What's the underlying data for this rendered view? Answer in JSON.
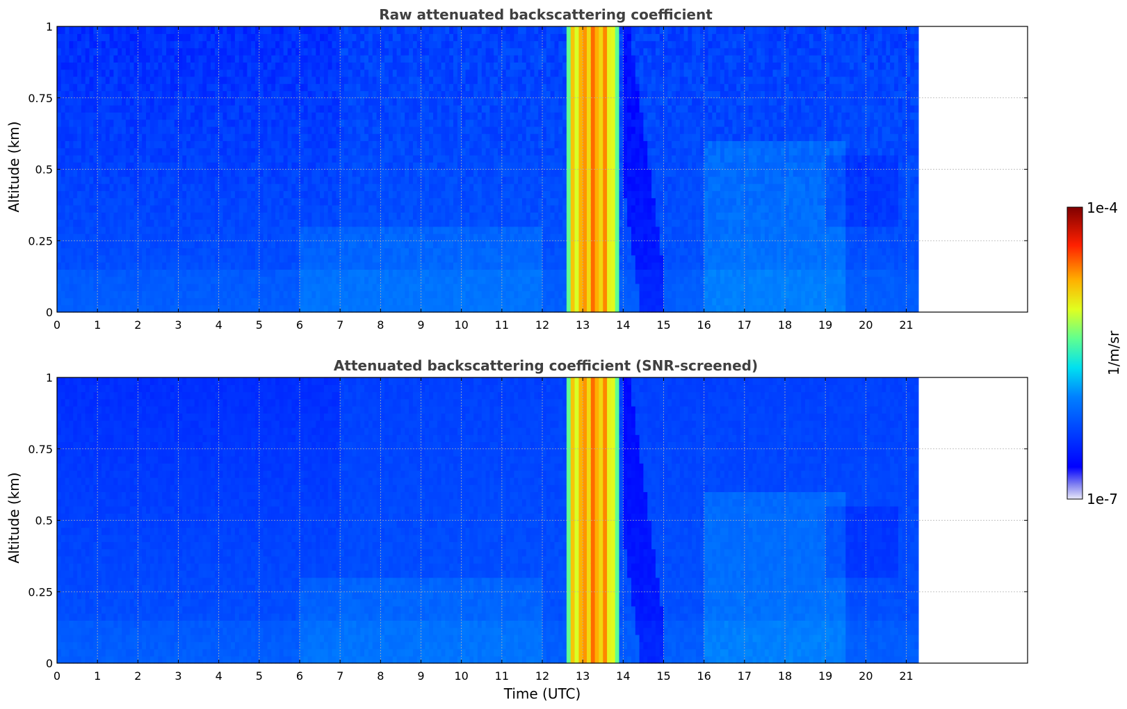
{
  "chart_data": [
    {
      "type": "heatmap",
      "title": "Raw attenuated backscattering coefficient",
      "xlabel": "",
      "ylabel": "Altitude (km)",
      "xlim": [
        0,
        24
      ],
      "ylim": [
        0,
        1
      ],
      "data_x_range": [
        0,
        21.3
      ],
      "xticks": [
        "0",
        "1",
        "2",
        "3",
        "4",
        "5",
        "6",
        "7",
        "8",
        "9",
        "10",
        "11",
        "12",
        "13",
        "14",
        "15",
        "16",
        "17",
        "18",
        "19",
        "20",
        "21"
      ],
      "yticks": [
        "0",
        "0.25",
        "0.5",
        "0.75",
        "1"
      ],
      "grid": true,
      "features": [
        {
          "name": "cloud band",
          "x_start": 12.6,
          "x_end": 13.9,
          "level": "high"
        },
        {
          "name": "clear layer",
          "x_start": 14.0,
          "x_end": 15.0,
          "level": "low"
        }
      ]
    },
    {
      "type": "heatmap",
      "title": "Attenuated backscattering coefficient (SNR-screened)",
      "xlabel": "Time (UTC)",
      "ylabel": "Altitude (km)",
      "xlim": [
        0,
        24
      ],
      "ylim": [
        0,
        1
      ],
      "data_x_range": [
        0,
        21.3
      ],
      "xticks": [
        "0",
        "1",
        "2",
        "3",
        "4",
        "5",
        "6",
        "7",
        "8",
        "9",
        "10",
        "11",
        "12",
        "13",
        "14",
        "15",
        "16",
        "17",
        "18",
        "19",
        "20",
        "21"
      ],
      "yticks": [
        "0",
        "0.25",
        "0.5",
        "0.75",
        "1"
      ],
      "grid": true,
      "features": [
        {
          "name": "cloud band",
          "x_start": 12.6,
          "x_end": 13.9,
          "level": "high"
        },
        {
          "name": "clear layer",
          "x_start": 14.0,
          "x_end": 15.0,
          "level": "low"
        }
      ]
    }
  ],
  "colorbar": {
    "label": "1/m/sr",
    "max_label": "1e-4",
    "min_label": "1e-7",
    "min": 1e-07,
    "max": 0.0001,
    "scale": "log",
    "colormap": "jet"
  }
}
